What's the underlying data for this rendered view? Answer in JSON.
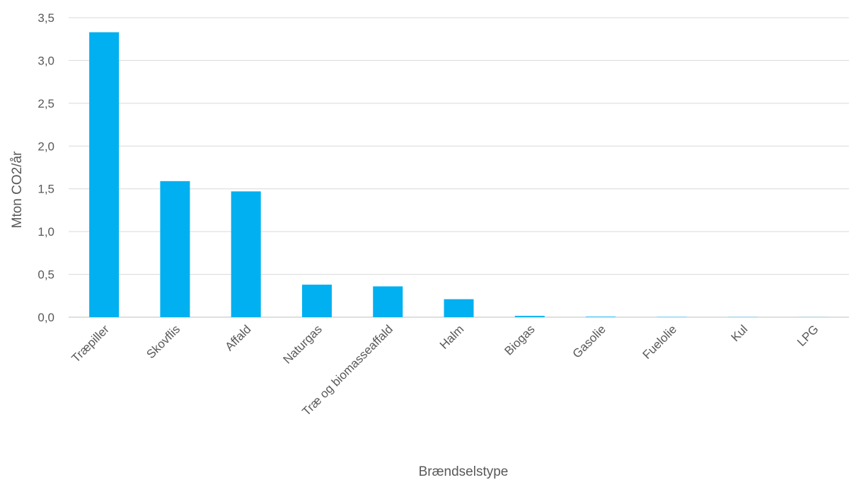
{
  "chart_data": {
    "type": "bar",
    "title": "",
    "xlabel": "Brændselstype",
    "ylabel": "Mton CO2/år",
    "categories": [
      "Træpiller",
      "Skovflis",
      "Affald",
      "Naturgas",
      "Træ og biomasseaffald",
      "Halm",
      "Biogas",
      "Gasolie",
      "Fuelolie",
      "Kul",
      "LPG"
    ],
    "values": [
      3.33,
      1.59,
      1.47,
      0.38,
      0.36,
      0.21,
      0.015,
      0.006,
      0.003,
      0.002,
      0.001
    ],
    "ylim": [
      0,
      3.5
    ],
    "yticks": [
      "0,0",
      "0,5",
      "1,0",
      "1,5",
      "2,0",
      "2,5",
      "3,0",
      "3,5"
    ],
    "grid": true,
    "legend": "none",
    "bar_color": "#00b0f0"
  }
}
